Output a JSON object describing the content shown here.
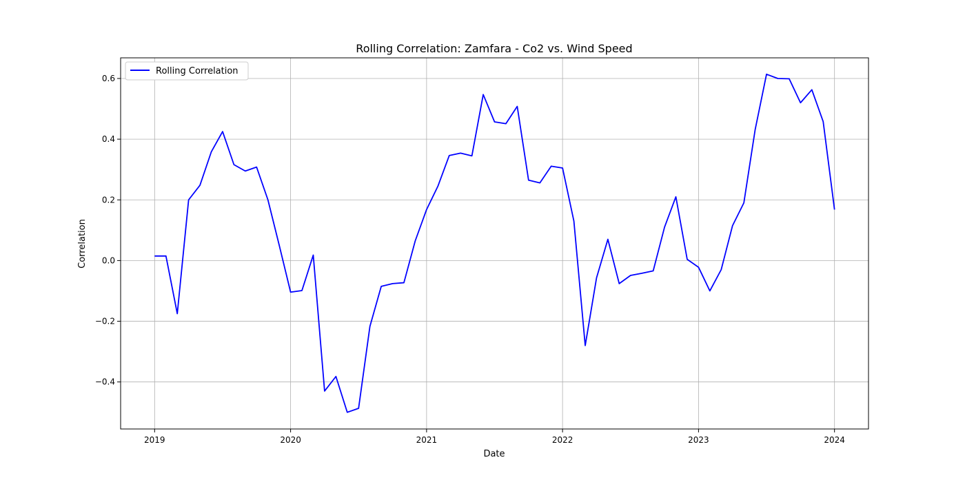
{
  "chart_data": {
    "type": "line",
    "title": "Rolling Correlation: Zamfara - Co2 vs. Wind Speed",
    "xlabel": "Date",
    "ylabel": "Correlation",
    "xlim": [
      2018.75,
      2024.25
    ],
    "ylim": [
      -0.555,
      0.668
    ],
    "x_ticks": [
      2019,
      2020,
      2021,
      2022,
      2023,
      2024
    ],
    "x_tick_labels": [
      "2019",
      "2020",
      "2021",
      "2022",
      "2023",
      "2024"
    ],
    "y_ticks": [
      -0.4,
      -0.2,
      0.0,
      0.2,
      0.4,
      0.6
    ],
    "y_tick_labels": [
      "−0.4",
      "−0.2",
      "0.0",
      "0.2",
      "0.4",
      "0.6"
    ],
    "grid": true,
    "legend_position": "top-left",
    "series": [
      {
        "name": "Rolling Correlation",
        "color": "#0000ff",
        "x": [
          "2019-01",
          "2019-02",
          "2019-03",
          "2019-04",
          "2019-05",
          "2019-06",
          "2019-07",
          "2019-08",
          "2019-09",
          "2019-10",
          "2019-11",
          "2019-12",
          "2020-01",
          "2020-02",
          "2020-03",
          "2020-04",
          "2020-05",
          "2020-06",
          "2020-07",
          "2020-08",
          "2020-09",
          "2020-10",
          "2020-11",
          "2020-12",
          "2021-01",
          "2021-02",
          "2021-03",
          "2021-04",
          "2021-05",
          "2021-06",
          "2021-07",
          "2021-08",
          "2021-09",
          "2021-10",
          "2021-11",
          "2021-12",
          "2022-01",
          "2022-02",
          "2022-03",
          "2022-04",
          "2022-05",
          "2022-06",
          "2022-07",
          "2022-08",
          "2022-09",
          "2022-10",
          "2022-11",
          "2022-12",
          "2023-01",
          "2023-02",
          "2023-03",
          "2023-04",
          "2023-05",
          "2023-06",
          "2023-07",
          "2023-08",
          "2023-09",
          "2023-10",
          "2023-11",
          "2023-12",
          "2024-01"
        ],
        "values": [
          0.015,
          0.015,
          -0.175,
          0.2,
          0.248,
          0.358,
          0.425,
          0.316,
          0.295,
          0.308,
          0.2,
          0.05,
          -0.104,
          -0.099,
          0.018,
          -0.43,
          -0.382,
          -0.5,
          -0.487,
          -0.217,
          -0.085,
          -0.076,
          -0.073,
          0.065,
          0.168,
          0.245,
          0.346,
          0.354,
          0.345,
          0.547,
          0.457,
          0.451,
          0.508,
          0.265,
          0.256,
          0.311,
          0.305,
          0.13,
          -0.28,
          -0.057,
          0.07,
          -0.076,
          -0.049,
          -0.042,
          -0.034,
          0.11,
          0.21,
          0.004,
          -0.022,
          -0.1,
          -0.03,
          0.115,
          0.19,
          0.432,
          0.614,
          0.6,
          0.599,
          0.52,
          0.563,
          0.458,
          0.168
        ]
      }
    ]
  }
}
